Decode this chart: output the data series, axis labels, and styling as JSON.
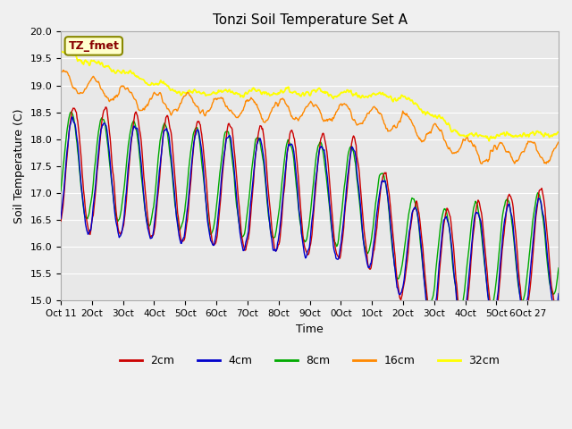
{
  "title": "Tonzi Soil Temperature Set A",
  "xlabel": "Time",
  "ylabel": "Soil Temperature (C)",
  "ylim": [
    15.0,
    20.0
  ],
  "yticks": [
    15.0,
    15.5,
    16.0,
    16.5,
    17.0,
    17.5,
    18.0,
    18.5,
    19.0,
    19.5,
    20.0
  ],
  "xtick_labels": [
    "Oct 11",
    "2Oct",
    "3Oct",
    "4Oct",
    "5Oct",
    "6Oct",
    "7Oct",
    "8Oct",
    "9Oct",
    "0Oct",
    "1Oct",
    "2Oct",
    "3Oct",
    "4Oct",
    "5Oct",
    "6Oct 27"
  ],
  "colors": {
    "2cm": "#cc0000",
    "4cm": "#0000cc",
    "8cm": "#00aa00",
    "16cm": "#ff8800",
    "32cm": "#ffff00"
  },
  "legend_label": "TZ_fmet",
  "fig_facecolor": "#f0f0f0",
  "ax_facecolor": "#e8e8e8",
  "grid_color": "#ffffff",
  "spine_color": "#aaaaaa",
  "ann_facecolor": "#ffffcc",
  "ann_edgecolor": "#888800",
  "ann_textcolor": "#880000"
}
